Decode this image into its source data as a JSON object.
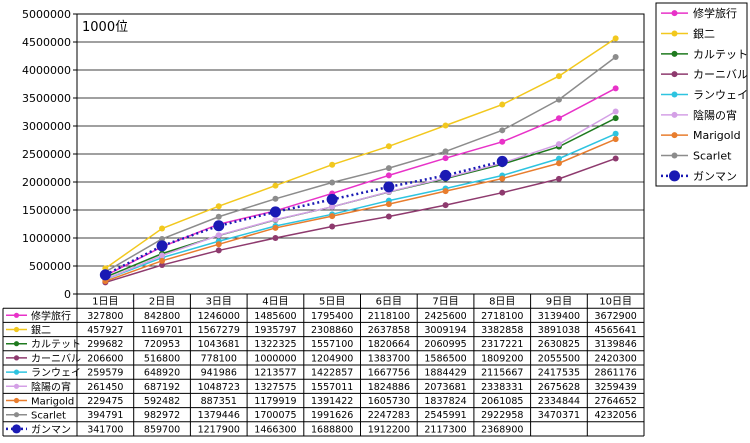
{
  "chart_data": {
    "type": "line",
    "annotation": "1000位",
    "ylim": [
      0,
      5000000
    ],
    "yticks": [
      0,
      500000,
      1000000,
      1500000,
      2000000,
      2500000,
      3000000,
      3500000,
      4000000,
      4500000,
      5000000
    ],
    "ytick_labels": [
      "0",
      "500000",
      "1000000",
      "1500000",
      "2000000",
      "2500000",
      "3000000",
      "3500000",
      "4000000",
      "4500000",
      "5000000"
    ],
    "grid": true,
    "legend_placement": "right",
    "categories": [
      "1日目",
      "2日目",
      "3日目",
      "4日目",
      "5日目",
      "6日目",
      "7日目",
      "8日目",
      "9日目",
      "10日目"
    ],
    "series": [
      {
        "name": "修学旅行",
        "color": "#e832c8",
        "marker": "circle",
        "dashed": false,
        "values": [
          327800,
          842800,
          1246000,
          1485600,
          1795400,
          2118100,
          2425600,
          2718100,
          3139400,
          3672900
        ],
        "labels": [
          "327800",
          "842800",
          "1246000",
          "1485600",
          "1795400",
          "2118100",
          "2425600",
          "2718100",
          "3139400",
          "3672900"
        ]
      },
      {
        "name": "銀二",
        "color": "#f2c81e",
        "marker": "circle",
        "dashed": false,
        "values": [
          457927,
          1169701,
          1567279,
          1935797,
          2308860,
          2637858,
          3009194,
          3382858,
          3891038,
          4565641
        ],
        "labels": [
          "457927",
          "1169701",
          "1567279",
          "1935797",
          "2308860",
          "2637858",
          "3009194",
          "3382858",
          "3891038",
          "4565641"
        ]
      },
      {
        "name": "カルテット",
        "color": "#1f7a1f",
        "marker": "circle",
        "dashed": false,
        "values": [
          299682,
          720953,
          1043681,
          1322325,
          1557100,
          1820664,
          2060995,
          2317221,
          2630825,
          3139846
        ],
        "labels": [
          "299682",
          "720953",
          "1043681",
          "1322325",
          "1557100",
          "1820664",
          "2060995",
          "2317221",
          "2630825",
          "3139846"
        ]
      },
      {
        "name": "カーニバル",
        "color": "#8e3a6e",
        "marker": "circle",
        "dashed": false,
        "values": [
          206600,
          516800,
          778100,
          1000000,
          1204900,
          1383700,
          1586500,
          1809200,
          2055500,
          2420300
        ],
        "labels": [
          "206600",
          "516800",
          "778100",
          "1000000",
          "1204900",
          "1383700",
          "1586500",
          "1809200",
          "2055500",
          "2420300"
        ]
      },
      {
        "name": "ランウェイ",
        "color": "#2ec4e0",
        "marker": "circle",
        "dashed": false,
        "values": [
          259579,
          648920,
          941986,
          1213577,
          1422857,
          1667756,
          1884429,
          2115667,
          2417535,
          2861176
        ],
        "labels": [
          "259579",
          "648920",
          "941986",
          "1213577",
          "1422857",
          "1667756",
          "1884429",
          "2115667",
          "2417535",
          "2861176"
        ]
      },
      {
        "name": "陰陽の宵",
        "color": "#d4a0e6",
        "marker": "circle",
        "dashed": false,
        "values": [
          261450,
          687192,
          1048723,
          1327575,
          1557011,
          1824886,
          2073681,
          2338331,
          2675628,
          3259439
        ],
        "labels": [
          "261450",
          "687192",
          "1048723",
          "1327575",
          "1557011",
          "1824886",
          "2073681",
          "2338331",
          "2675628",
          "3259439"
        ]
      },
      {
        "name": "Marigold",
        "color": "#e87d2e",
        "marker": "circle",
        "dashed": false,
        "values": [
          229475,
          592482,
          887351,
          1179919,
          1391422,
          1605730,
          1837824,
          2061085,
          2334844,
          2764652
        ],
        "labels": [
          "229475",
          "592482",
          "887351",
          "1179919",
          "1391422",
          "1605730",
          "1837824",
          "2061085",
          "2334844",
          "2764652"
        ]
      },
      {
        "name": "Scarlet",
        "color": "#8c8c8c",
        "marker": "circle",
        "dashed": false,
        "values": [
          394791,
          982972,
          1379446,
          1700075,
          1991626,
          2247283,
          2545991,
          2922958,
          3470371,
          4232056
        ],
        "labels": [
          "394791",
          "982972",
          "1379446",
          "1700075",
          "1991626",
          "2247283",
          "2545991",
          "2922958",
          "3470371",
          "4232056"
        ]
      },
      {
        "name": "ガンマン",
        "color": "#1a1ab4",
        "marker": "big-circle",
        "dashed": true,
        "values": [
          341700,
          859700,
          1217900,
          1466300,
          1688800,
          1912200,
          2117300,
          2368900,
          null,
          null
        ],
        "labels": [
          "341700",
          "859700",
          "1217900",
          "1466300",
          "1688800",
          "1912200",
          "2117300",
          "2368900",
          "",
          ""
        ]
      }
    ]
  }
}
